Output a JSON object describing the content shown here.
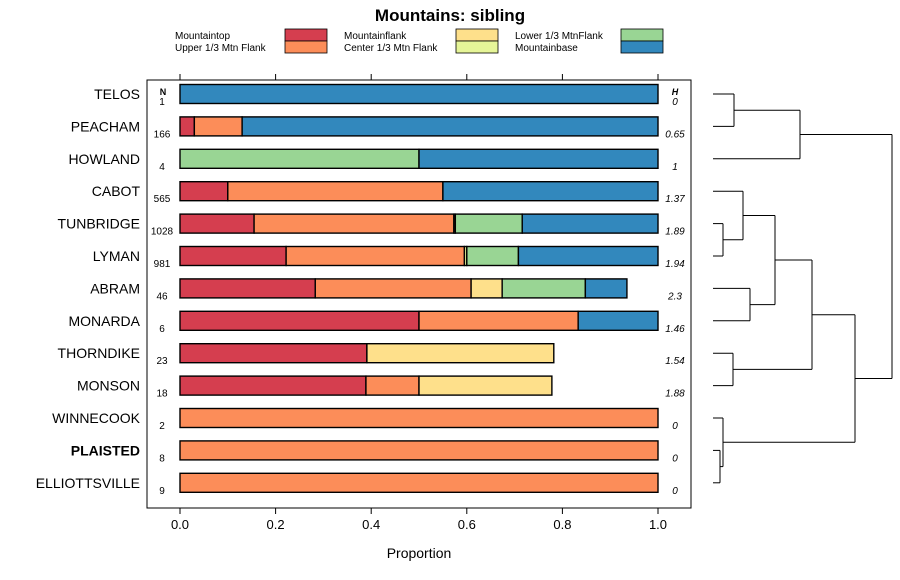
{
  "chart_data": {
    "type": "bar",
    "orientation": "horizontal",
    "stacked": true,
    "title": "Mountains: sibling",
    "xlabel": "Proportion",
    "ylabel": "",
    "xlim": [
      0,
      1
    ],
    "x_ticks": [
      "0.0",
      "0.2",
      "0.4",
      "0.6",
      "0.8",
      "1.0"
    ],
    "x_tick_values": [
      0,
      0.2,
      0.4,
      0.6,
      0.8,
      1.0
    ],
    "n_header": "N",
    "h_header": "H",
    "categories": [
      "TELOS",
      "PEACHAM",
      "HOWLAND",
      "CABOT",
      "TUNBRIDGE",
      "LYMAN",
      "ABRAM",
      "MONARDA",
      "THORNDIKE",
      "MONSON",
      "WINNECOOK",
      "PLAISTED",
      "ELLIOTTSVILLE"
    ],
    "highlighted": "PLAISTED",
    "n_values": [
      "1",
      "166",
      "4",
      "565",
      "1028",
      "981",
      "46",
      "6",
      "23",
      "18",
      "2",
      "8",
      "9"
    ],
    "h_values": [
      "0",
      "0.65",
      "1",
      "1.37",
      "1.89",
      "1.94",
      "2.3",
      "1.46",
      "1.54",
      "1.88",
      "0",
      "0",
      "0"
    ],
    "series": [
      {
        "name": "Mountaintop",
        "color": "#d53e4f",
        "values": [
          0,
          0.03,
          0,
          0.1,
          0.155,
          0.222,
          0.283,
          0.5,
          0.391,
          0.389,
          0,
          0,
          0
        ]
      },
      {
        "name": "Upper 1/3 Mtn Flank",
        "color": "#fc8d59",
        "values": [
          0,
          0.1,
          0,
          0.45,
          0.418,
          0.373,
          0.326,
          0.333,
          0,
          0.111,
          1,
          1,
          1
        ]
      },
      {
        "name": "Mountainflank",
        "color": "#fee08b",
        "values": [
          0,
          0,
          0,
          0,
          0,
          0,
          0.065,
          0,
          0.391,
          0.278,
          0,
          0,
          0
        ]
      },
      {
        "name": "Center 1/3 Mtn Flank",
        "color": "#e6f598",
        "values": [
          0,
          0,
          0,
          0,
          0.003,
          0.005,
          0,
          0,
          0,
          0,
          0,
          0,
          0
        ]
      },
      {
        "name": "Lower 1/3 MtnFlank",
        "color": "#99d594",
        "values": [
          0,
          0,
          0.5,
          0,
          0.14,
          0.108,
          0.174,
          0,
          0,
          0,
          0,
          0,
          0
        ]
      },
      {
        "name": "Mountainbase",
        "color": "#3288bd",
        "values": [
          1,
          0.87,
          0.5,
          0.45,
          0.284,
          0.292,
          0.087,
          0.167,
          0,
          0,
          0,
          0,
          0
        ]
      }
    ],
    "legend": {
      "placement": "top",
      "entries": [
        {
          "name": "Mountaintop",
          "color": "#d53e4f"
        },
        {
          "name": "Upper 1/3 Mtn Flank",
          "color": "#fc8d59"
        },
        {
          "name": "Mountainflank",
          "color": "#fee08b"
        },
        {
          "name": "Center 1/3 Mtn Flank",
          "color": "#e6f598"
        },
        {
          "name": "Lower 1/3 MtnFlank",
          "color": "#99d594"
        },
        {
          "name": "Mountainbase",
          "color": "#3288bd"
        }
      ]
    },
    "dendrogram": {
      "placement": "right",
      "clusters": [
        [
          "TELOS",
          "PEACHAM",
          "HOWLAND"
        ],
        [
          "CABOT",
          "TUNBRIDGE",
          "LYMAN",
          "ABRAM",
          "MONARDA"
        ],
        [
          "THORNDIKE",
          "MONSON"
        ],
        [
          "WINNECOOK",
          "PLAISTED",
          "ELLIOTTSVILLE"
        ]
      ]
    }
  }
}
